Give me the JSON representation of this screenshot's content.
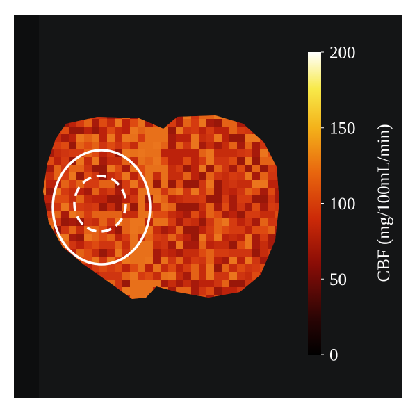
{
  "colorbar": {
    "label": "CBF (mg/100mL/min)",
    "lim": [
      0,
      200
    ],
    "ticks": [
      0,
      50,
      100,
      150,
      200
    ]
  }
}
